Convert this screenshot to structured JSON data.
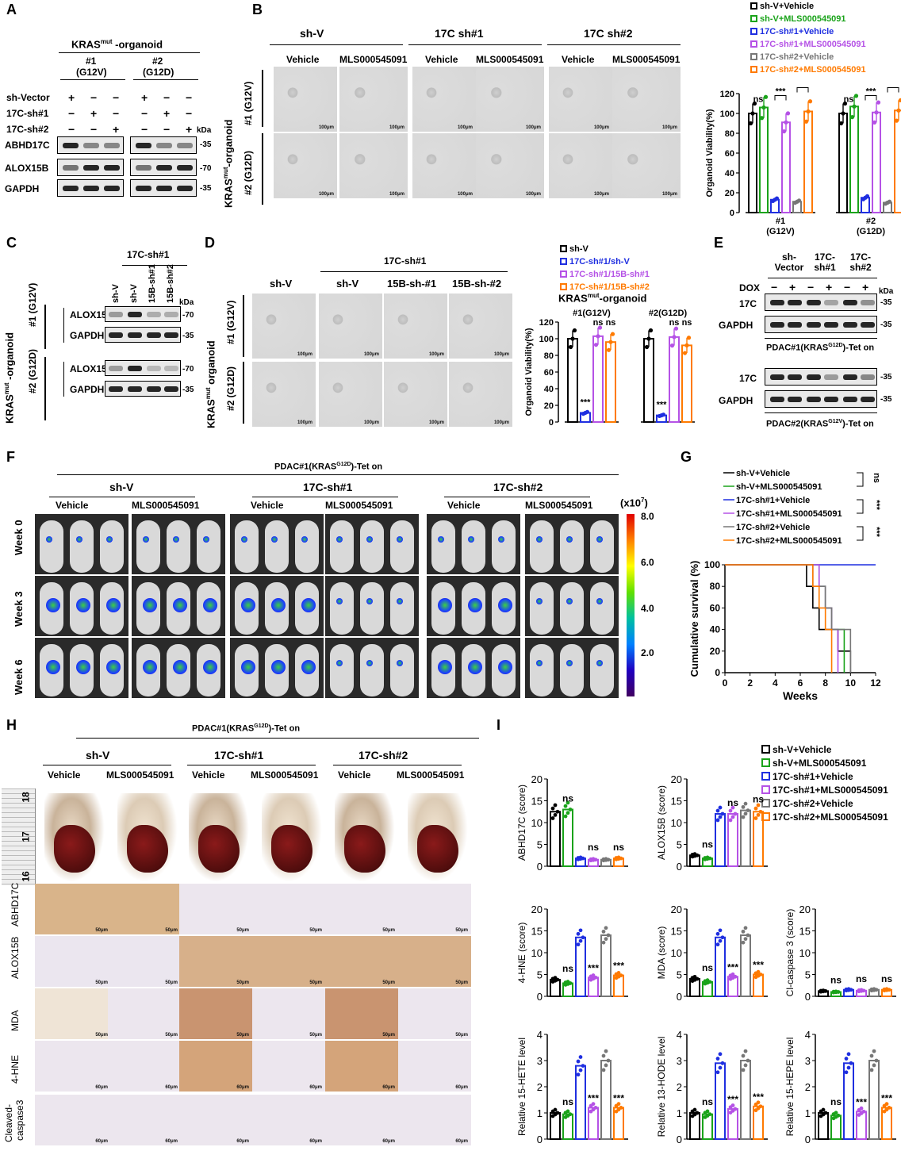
{
  "panels": {
    "A": {
      "label": "A",
      "title": "KRAS",
      "title_sup": "mut",
      "title_tail": " -organoid",
      "groups": [
        {
          "num": "#1",
          "mut": "(G12V)"
        },
        {
          "num": "#2",
          "mut": "(G12D)"
        }
      ],
      "rows": [
        {
          "name": "sh-Vector",
          "marks": [
            "+",
            "−",
            "−",
            "+",
            "−",
            "−"
          ]
        },
        {
          "name": "17C-sh#1",
          "marks": [
            "−",
            "+",
            "−",
            "−",
            "+",
            "−"
          ]
        },
        {
          "name": "17C-sh#2",
          "marks": [
            "−",
            "−",
            "+",
            "−",
            "−",
            "+"
          ]
        }
      ],
      "kda": "kDa",
      "blots": [
        {
          "name": "ABHD17C",
          "mw": "35"
        },
        {
          "name": "ALOX15B",
          "mw": "70"
        },
        {
          "name": "GAPDH",
          "mw": "35"
        }
      ]
    },
    "B": {
      "label": "B",
      "groups": [
        "sh-V",
        "17C sh#1",
        "17C sh#2"
      ],
      "cols": [
        "Vehicle",
        "MLS000545091",
        "Vehicle",
        "MLS000545091",
        "Vehicle",
        "MLS000545091"
      ],
      "side": "KRAS",
      "side_sup": "mut",
      "side_tail": "-organoid",
      "rows": [
        "#1 (G12V)",
        "#2 (G12D)"
      ],
      "scale": "100μm"
    },
    "C": {
      "label": "C",
      "group": "17C-sh#1",
      "cols": [
        "sh-V",
        "sh-V",
        "15B-sh#1",
        "15B-sh#2"
      ],
      "side": "KRAS",
      "side_sup": "mut",
      "side_tail": " -organoid",
      "rows": [
        "#1 (G12V)",
        "#2 (G12D)"
      ],
      "blots": [
        "ALOX15B",
        "GAPDH"
      ],
      "mw": [
        "70",
        "35"
      ],
      "kda": "kDa"
    },
    "D": {
      "label": "D",
      "group": "17C-sh#1",
      "cols": [
        "sh-V",
        "sh-V",
        "15B-sh-#1",
        "15B-sh-#2"
      ],
      "side": "KRAS",
      "side_sup": "mut",
      "side_tail": " organoid",
      "rows": [
        "#1 (G12V)",
        "#2 (G12D)"
      ],
      "scale": "100μm"
    },
    "E": {
      "label": "E",
      "cols": [
        "sh- Vector",
        "17C- sh#1",
        "17C- sh#2"
      ],
      "dox": "DOX",
      "marks": [
        "−",
        "+",
        "−",
        "+",
        "−",
        "+"
      ],
      "kda": "kDa",
      "blots": [
        {
          "name": "17C",
          "mw": "35"
        },
        {
          "name": "GAPDH",
          "mw": "35"
        }
      ],
      "captions": [
        {
          "pre": "PDAC#1(KRAS",
          "sup": "G12D",
          "post": ")-Tet on"
        },
        {
          "pre": "PDAC#2(KRAS",
          "sup": "G12V",
          "post": ")-Tet on"
        }
      ]
    },
    "F": {
      "label": "F",
      "title_pre": "PDAC#1(KRAS",
      "title_sup": "G12D",
      "title_post": ")-Tet on",
      "groups": [
        "sh-V",
        "17C-sh#1",
        "17C-sh#2"
      ],
      "cols": [
        "Vehicle",
        "MLS000545091",
        "Vehicle",
        "MLS000545091",
        "Vehicle",
        "MLS000545091"
      ],
      "rows": [
        "Week 0",
        "Week 3",
        "Week 6"
      ],
      "unit_pre": "(x10",
      "unit_sup": "7",
      "unit_post": ")",
      "colorbar_ticks": [
        "8.0",
        "6.0",
        "4.0",
        "2.0"
      ]
    },
    "G": {
      "label": "G",
      "sig": [
        "ns",
        "***",
        "***"
      ]
    },
    "H": {
      "label": "H",
      "title_pre": "PDAC#1(KRAS",
      "title_sup": "G12D",
      "title_post": ")-Tet on",
      "groups": [
        "sh-V",
        "17C-sh#1",
        "17C-sh#2"
      ],
      "cols": [
        "Vehicle",
        "MLS000545091",
        "Vehicle",
        "MLS000545091",
        "Vehicle",
        "MLS000545091"
      ],
      "rows": [
        "ABHD17C",
        "ALOX15B",
        "MDA",
        "4-HNE",
        "Cleaved- caspase3"
      ],
      "ruler": [
        "18",
        "17",
        "16"
      ],
      "scale": [
        "50μm",
        "50μm",
        "50μm",
        "60μm",
        "60μm"
      ]
    },
    "I": {
      "label": "I"
    }
  },
  "colors": {
    "shV_vehicle": "#000000",
    "shV_MLS": "#1aa31a",
    "sh1_vehicle": "#1f2fe0",
    "sh1_MLS": "#b552e6",
    "sh2_vehicle": "#777777",
    "sh2_MLS": "#ff7a00"
  },
  "chart_data": [
    {
      "id": "B-viability",
      "type": "bar",
      "ylabel": "Organoid Viability(%)",
      "ylim": [
        0,
        120
      ],
      "yticks": [
        0,
        20,
        40,
        60,
        80,
        100,
        120
      ],
      "categories": [
        "#1 (G12V)",
        "#2 (G12D)"
      ],
      "series": [
        {
          "name": "sh-V+Vehicle",
          "values": [
            100,
            100
          ]
        },
        {
          "name": "sh-V+MLS000545091",
          "values": [
            106,
            107
          ]
        },
        {
          "name": "17C-sh#1+Vehicle",
          "values": [
            13,
            15
          ]
        },
        {
          "name": "17C-sh#1+MLS000545091",
          "values": [
            91,
            101
          ]
        },
        {
          "name": "17C-sh#2+Vehicle",
          "values": [
            11,
            10
          ]
        },
        {
          "name": "17C-sh#2+MLS000545091",
          "values": [
            102,
            103
          ]
        }
      ],
      "annotations": [
        "ns",
        "***",
        "***",
        "ns",
        "***",
        "***"
      ]
    },
    {
      "id": "D-viability",
      "type": "bar",
      "title_pre": "KRAS",
      "title_sup": "mut",
      "title_post": "-organoid",
      "ylabel": "Organoid Viability(%)",
      "ylim": [
        0,
        120
      ],
      "yticks": [
        0,
        20,
        40,
        60,
        80,
        100,
        120
      ],
      "categories": [
        "#1(G12V)",
        "#2(G12D)"
      ],
      "series": [
        {
          "name": "sh-V",
          "values": [
            100,
            100
          ]
        },
        {
          "name": "17C-sh#1/sh-V",
          "values": [
            11,
            8
          ]
        },
        {
          "name": "17C-sh#1/15B-sh#1",
          "values": [
            103,
            102
          ]
        },
        {
          "name": "17C-sh#1/15B-sh#2",
          "values": [
            96,
            92
          ]
        }
      ],
      "annotations": [
        "***",
        "ns",
        "ns",
        "***",
        "ns",
        "ns"
      ]
    },
    {
      "id": "G-survival",
      "type": "line",
      "ylabel": "Cumulative survival (%)",
      "xlabel": "Weeks",
      "xlim": [
        0,
        12
      ],
      "ylim": [
        0,
        100
      ],
      "xticks": [
        0,
        2,
        4,
        6,
        8,
        10,
        12
      ],
      "yticks": [
        0,
        20,
        40,
        60,
        80,
        100
      ],
      "series": [
        {
          "name": "sh-V+Vehicle",
          "x": [
            0,
            6,
            6.5,
            7,
            7.5,
            8.5,
            9,
            10,
            10
          ],
          "y": [
            100,
            100,
            80,
            60,
            40,
            40,
            20,
            20,
            0
          ]
        },
        {
          "name": "sh-V+MLS000545091",
          "x": [
            0,
            6.5,
            7.5,
            8,
            8.5,
            9.5,
            9.5
          ],
          "y": [
            100,
            100,
            80,
            60,
            40,
            20,
            0
          ]
        },
        {
          "name": "17C-sh#1+Vehicle",
          "x": [
            0,
            12
          ],
          "y": [
            100,
            100
          ]
        },
        {
          "name": "17C-sh#1+MLS000545091",
          "x": [
            0,
            7,
            7.5,
            8,
            8.5,
            9,
            9
          ],
          "y": [
            100,
            100,
            80,
            60,
            40,
            20,
            0
          ]
        },
        {
          "name": "17C-sh#2+Vehicle",
          "x": [
            0,
            6,
            7,
            8,
            8.5,
            10,
            10
          ],
          "y": [
            100,
            100,
            80,
            60,
            40,
            20,
            0
          ]
        },
        {
          "name": "17C-sh#2+MLS000545091",
          "x": [
            0,
            6.5,
            7,
            7.5,
            8,
            8.5,
            8.5
          ],
          "y": [
            100,
            100,
            80,
            60,
            40,
            20,
            0
          ]
        }
      ]
    },
    {
      "id": "I-ABHD17C",
      "type": "bar",
      "ylabel": "ABHD17C (score)",
      "ylim": [
        0,
        20
      ],
      "yticks": [
        0,
        5,
        10,
        15,
        20
      ],
      "values": [
        12.5,
        13,
        1.8,
        1.5,
        1.5,
        1.8
      ],
      "annotations": [
        "ns",
        "ns",
        "ns"
      ]
    },
    {
      "id": "I-ALOX15B",
      "type": "bar",
      "ylabel": "ALOX15B (score)",
      "ylim": [
        0,
        20
      ],
      "yticks": [
        0,
        5,
        10,
        15,
        20
      ],
      "values": [
        2.5,
        1.8,
        12,
        12,
        12.8,
        12.5
      ],
      "annotations": [
        "ns",
        "ns",
        "ns"
      ]
    },
    {
      "id": "I-4HNE",
      "type": "bar",
      "ylabel": "4-HNE (score)",
      "ylim": [
        0,
        20
      ],
      "yticks": [
        0,
        5,
        10,
        15,
        20
      ],
      "values": [
        3.8,
        3,
        13.5,
        4.3,
        14,
        4.8
      ],
      "annotations": [
        "ns",
        "***",
        "***"
      ]
    },
    {
      "id": "I-MDA",
      "type": "bar",
      "ylabel": "MDA (score)",
      "ylim": [
        0,
        20
      ],
      "yticks": [
        0,
        5,
        10,
        15,
        20
      ],
      "values": [
        4,
        3.3,
        13.5,
        4.5,
        14,
        5
      ],
      "annotations": [
        "ns",
        "***",
        "***"
      ]
    },
    {
      "id": "I-caspase",
      "type": "bar",
      "ylabel": "Cl-caspase 3 (score)",
      "ylim": [
        0,
        20
      ],
      "yticks": [
        0,
        5,
        10,
        15,
        20
      ],
      "values": [
        1.2,
        1,
        1.5,
        1.3,
        1.5,
        1.5
      ],
      "annotations": [
        "ns",
        "ns",
        "ns"
      ]
    },
    {
      "id": "I-15HETE",
      "type": "bar",
      "ylabel": "Relative 15-HETE level",
      "ylim": [
        0,
        4
      ],
      "yticks": [
        0,
        1,
        2,
        3,
        4
      ],
      "values": [
        1,
        0.95,
        2.8,
        1.2,
        3,
        1.2
      ],
      "annotations": [
        "ns",
        "***",
        "***"
      ]
    },
    {
      "id": "I-13HODE",
      "type": "bar",
      "ylabel": "Relative 13-HODE level",
      "ylim": [
        0,
        4
      ],
      "yticks": [
        0,
        1,
        2,
        3,
        4
      ],
      "values": [
        1,
        0.95,
        2.9,
        1.15,
        3,
        1.25
      ],
      "annotations": [
        "ns",
        "***",
        "***"
      ]
    },
    {
      "id": "I-15HEPE",
      "type": "bar",
      "ylabel": "Relative 15-HEPE level",
      "ylim": [
        0,
        4
      ],
      "yticks": [
        0,
        1,
        2,
        3,
        4
      ],
      "values": [
        1,
        0.9,
        2.9,
        1.05,
        3,
        1.2
      ],
      "annotations": [
        "ns",
        "***",
        "***"
      ]
    }
  ]
}
